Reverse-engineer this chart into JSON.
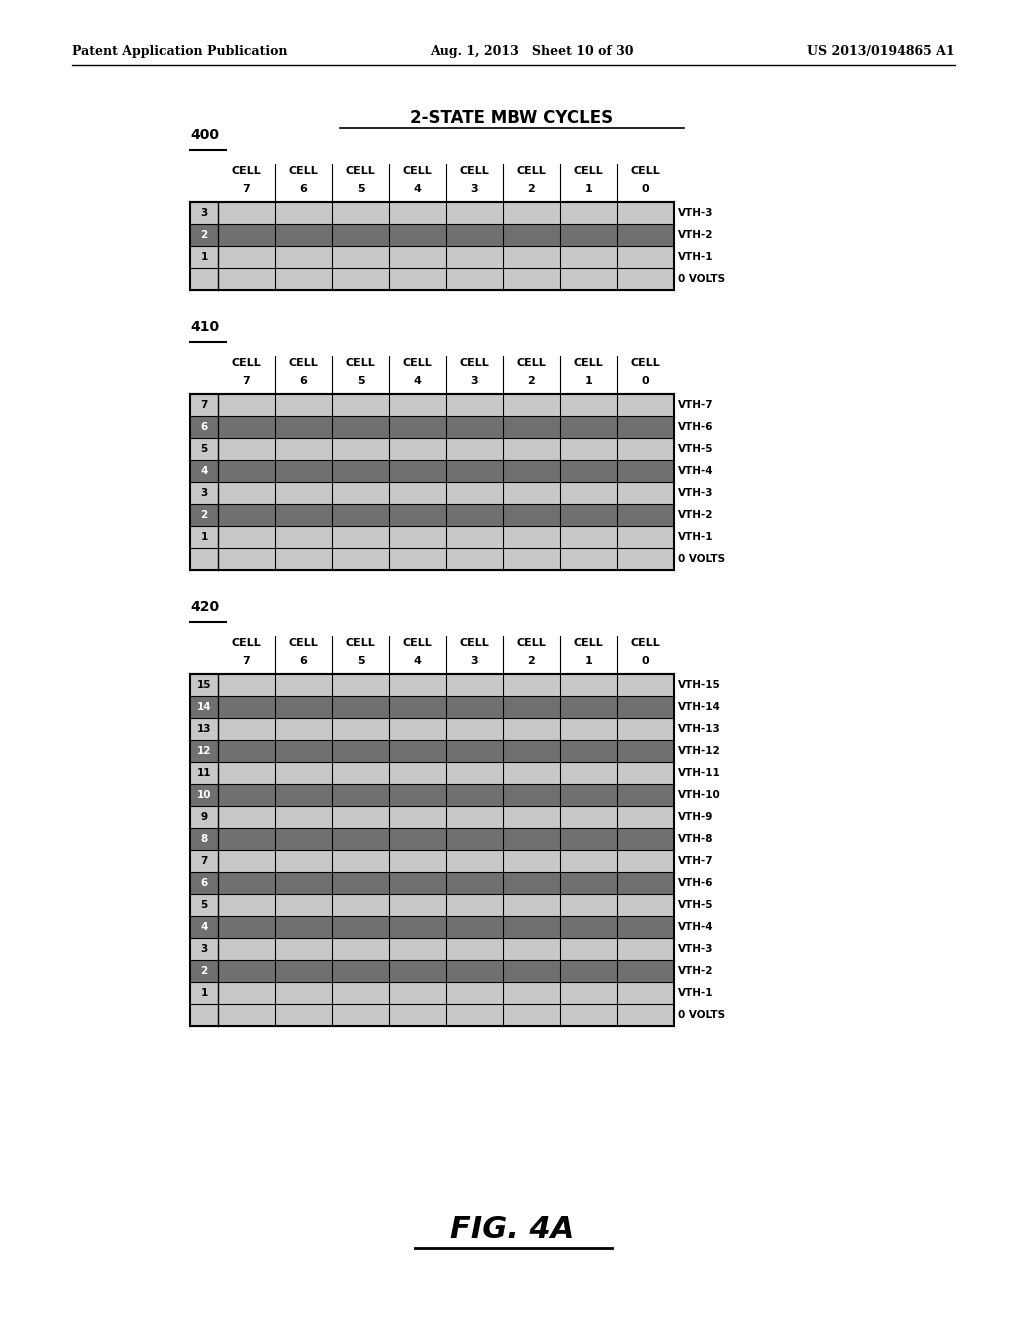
{
  "header_left": "Patent Application Publication",
  "header_mid": "Aug. 1, 2013   Sheet 10 of 30",
  "header_right": "US 2013/0194865 A1",
  "main_title": "2-STATE MBW CYCLES",
  "fig_label": "FIG. 4A",
  "tables": [
    {
      "label": "400",
      "num_rows": 4,
      "row_labels": [
        "3",
        "2",
        "1",
        ""
      ],
      "vth_labels": [
        "VTH-3",
        "VTH-2",
        "VTH-1",
        "0 VOLTS"
      ],
      "dark_rows": [
        1
      ]
    },
    {
      "label": "410",
      "num_rows": 8,
      "row_labels": [
        "7",
        "6",
        "5",
        "4",
        "3",
        "2",
        "1",
        ""
      ],
      "vth_labels": [
        "VTH-7",
        "VTH-6",
        "VTH-5",
        "VTH-4",
        "VTH-3",
        "VTH-2",
        "VTH-1",
        "0 VOLTS"
      ],
      "dark_rows": [
        1,
        3,
        5
      ]
    },
    {
      "label": "420",
      "num_rows": 16,
      "row_labels": [
        "15",
        "14",
        "13",
        "12",
        "11",
        "10",
        "9",
        "8",
        "7",
        "6",
        "5",
        "4",
        "3",
        "2",
        "1",
        ""
      ],
      "vth_labels": [
        "VTH-15",
        "VTH-14",
        "VTH-13",
        "VTH-12",
        "VTH-11",
        "VTH-10",
        "VTH-9",
        "VTH-8",
        "VTH-7",
        "VTH-6",
        "VTH-5",
        "VTH-4",
        "VTH-3",
        "VTH-2",
        "VTH-1",
        "0 VOLTS"
      ],
      "dark_rows": [
        1,
        3,
        5,
        7,
        9,
        11,
        13
      ]
    }
  ],
  "col_headers_top": [
    "CELL",
    "CELL",
    "CELL",
    "CELL",
    "CELL",
    "CELL",
    "CELL",
    "CELL"
  ],
  "col_headers_bot": [
    "7",
    "6",
    "5",
    "4",
    "3",
    "2",
    "1",
    "0"
  ],
  "light_gray": "#c8c8c8",
  "dark_gray": "#707070",
  "bg_color": "#ffffff"
}
